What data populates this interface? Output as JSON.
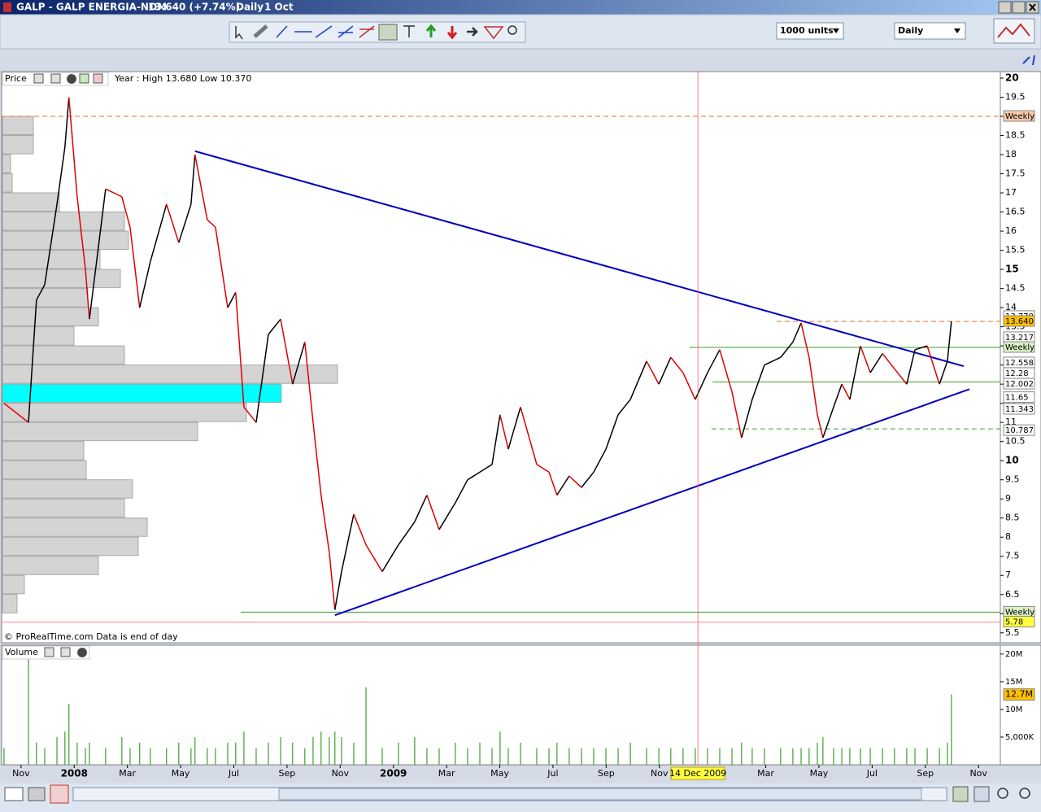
{
  "window": {
    "title": "GALP - GALP ENERGIA-NOM",
    "quote": "13.640 (+7.74%)",
    "period": "Daily",
    "date": "1 Oct"
  },
  "toolbar": {
    "units": "1000 units",
    "timeframe": "Daily"
  },
  "price_panel": {
    "label": "Price",
    "info": "Year : High 13.680 Low 10.370",
    "footer": "© ProRealTime.com Data is end of day"
  },
  "volume_panel": {
    "label": "Volume"
  },
  "chart_data": [
    {
      "type": "line",
      "xlim": [
        -0.73,
        36.82
      ],
      "ylim": [
        5.24,
        20.17
      ],
      "xticks": [
        {
          "value": 0,
          "label": "Nov"
        },
        {
          "value": 2,
          "label": "2008"
        },
        {
          "value": 4,
          "label": "Mar"
        },
        {
          "value": 6,
          "label": "May"
        },
        {
          "value": 8,
          "label": "Jul"
        },
        {
          "value": 10,
          "label": "Sep"
        },
        {
          "value": 12,
          "label": "Nov"
        },
        {
          "value": 14,
          "label": "2009"
        },
        {
          "value": 16,
          "label": "Mar"
        },
        {
          "value": 18,
          "label": "May"
        },
        {
          "value": 20,
          "label": "Jul"
        },
        {
          "value": 22,
          "label": "Sep"
        },
        {
          "value": 24,
          "label": "Nov"
        },
        {
          "value": 28,
          "label": "Mar"
        },
        {
          "value": 30,
          "label": "May"
        },
        {
          "value": 32,
          "label": "Jul"
        },
        {
          "value": 34,
          "label": "Sep"
        },
        {
          "value": 36,
          "label": "Nov"
        }
      ],
      "yticks": [
        5.5,
        6,
        6.5,
        7,
        7.5,
        8,
        8.5,
        9,
        9.5,
        10,
        10.5,
        11,
        11.5,
        12,
        12.5,
        13,
        13.5,
        14,
        14.5,
        15,
        15.5,
        16,
        16.5,
        17,
        17.5,
        18,
        18.5,
        19,
        19.5,
        20
      ],
      "colors": {
        "up": "#000000",
        "down": "#e00000"
      },
      "x": [
        -0.64,
        0.28,
        0.58,
        0.89,
        1.35,
        1.65,
        1.8,
        2.11,
        2.42,
        2.57,
        3.18,
        3.79,
        4.1,
        4.46,
        4.86,
        5.47,
        5.93,
        6.39,
        6.54,
        7.0,
        7.31,
        7.77,
        8.07,
        8.38,
        8.84,
        9.3,
        9.76,
        10.21,
        10.67,
        10.98,
        11.28,
        11.59,
        11.8,
        12.05,
        12.51,
        12.97,
        13.58,
        14.19,
        14.8,
        15.26,
        15.72,
        16.33,
        16.79,
        17.25,
        17.71,
        18.01,
        18.32,
        18.78,
        19.39,
        19.85,
        20.15,
        20.61,
        21.07,
        21.53,
        21.99,
        22.45,
        22.91,
        23.52,
        23.98,
        24.43,
        24.89,
        25.35,
        25.81,
        26.27,
        26.73,
        27.09,
        27.49,
        27.95,
        28.56,
        29.02,
        29.33,
        29.63,
        29.94,
        30.15,
        30.55,
        30.86,
        31.16,
        31.56,
        31.93,
        32.39,
        32.84,
        33.3,
        33.61,
        34.07,
        34.53,
        34.83,
        34.98
      ],
      "values": [
        11.5,
        11.0,
        14.2,
        14.6,
        16.7,
        18.2,
        19.5,
        16.9,
        15.0,
        13.7,
        17.1,
        16.9,
        16.1,
        14.0,
        15.2,
        16.7,
        15.7,
        16.7,
        18.0,
        16.3,
        16.1,
        14.0,
        14.4,
        11.4,
        11.0,
        13.3,
        13.7,
        12.0,
        13.1,
        11.0,
        9.1,
        7.6,
        6.1,
        7.1,
        8.6,
        7.8,
        7.1,
        7.8,
        8.4,
        9.1,
        8.2,
        8.9,
        9.5,
        9.7,
        9.9,
        11.2,
        10.3,
        11.4,
        9.9,
        9.7,
        9.1,
        9.6,
        9.3,
        9.7,
        10.3,
        11.2,
        11.6,
        12.6,
        12.0,
        12.7,
        12.3,
        11.6,
        12.3,
        12.9,
        11.8,
        10.6,
        11.6,
        12.5,
        12.7,
        13.1,
        13.6,
        12.7,
        11.2,
        10.6,
        11.4,
        12.0,
        11.6,
        13.0,
        12.3,
        12.8,
        12.4,
        12.0,
        12.9,
        13.0,
        12.0,
        12.6,
        13.64
      ],
      "trendlines": [
        {
          "points": [
            [
              6.54,
              18.09
            ],
            [
              35.44,
              12.47
            ]
          ],
          "color": "#0000c0"
        },
        {
          "points": [
            [
              11.8,
              5.96
            ],
            [
              35.66,
              11.87
            ]
          ],
          "color": "#0000c0"
        }
      ],
      "levels": [
        {
          "value": 19.0,
          "color": "#e07020",
          "dashed": true,
          "x_start": -0.73
        },
        {
          "value": 12.96,
          "color": "#3aa02a",
          "dashed": false,
          "x_start": 25.14
        },
        {
          "value": 12.06,
          "color": "#3aa02a",
          "dashed": false,
          "x_start": 26.0
        },
        {
          "value": 10.83,
          "color": "#3aa02a",
          "dashed": true,
          "x_start": 25.96
        },
        {
          "value": 13.64,
          "color": "#e07020",
          "dashed": true,
          "x_start": 28.41
        },
        {
          "value": 6.04,
          "color": "#3aa02a",
          "dashed": false,
          "x_start": 8.26
        },
        {
          "value": 5.78,
          "color": "#ff8080",
          "dashed": false,
          "x_start": -0.73
        }
      ],
      "price_labels": [
        {
          "value": 19.0,
          "label": "Weekly",
          "color": "#f8c8a8"
        },
        {
          "value": 13.77,
          "label": "13.770",
          "color": "#ffffff"
        },
        {
          "value": 13.64,
          "label": "13.640",
          "color": "#ffc000"
        },
        {
          "value": 13.217,
          "label": "13.217",
          "color": "#ffffff"
        },
        {
          "value": 12.96,
          "label": "Weekly",
          "color": "#d8f0c8"
        },
        {
          "value": 12.558,
          "label": "12.558",
          "color": "#ffffff"
        },
        {
          "value": 12.28,
          "label": "12.28",
          "color": "#ffffff"
        },
        {
          "value": 12.002,
          "label": "12.002",
          "color": "#ffffff"
        },
        {
          "value": 11.65,
          "label": "11.65",
          "color": "#ffffff"
        },
        {
          "value": 11.343,
          "label": "11.343",
          "color": "#ffffff"
        },
        {
          "value": 10.787,
          "label": "10.787",
          "color": "#ffffff"
        },
        {
          "value": 6.04,
          "label": "Weekly",
          "color": "#d8f0c8"
        },
        {
          "value": 5.78,
          "label": "5.78",
          "color": "#ffff40"
        }
      ],
      "cursor": {
        "x": 25.45,
        "label": "14 Dec 2009"
      },
      "volume_profile": {
        "bins": [
          6.0,
          6.5,
          7.0,
          7.5,
          8.0,
          8.5,
          9.0,
          9.5,
          10.0,
          10.5,
          11.0,
          11.5,
          12.0,
          12.5,
          13.0,
          13.5,
          14.0,
          14.5,
          15.0,
          15.5,
          16.0,
          16.5,
          17.0,
          17.5,
          18.0,
          18.5,
          19.0
        ],
        "values": [
          18,
          27,
          118,
          167,
          178,
          150,
          160,
          103,
          100,
          240,
          300,
          343,
          412,
          150,
          88,
          118,
          105,
          145,
          120,
          155,
          150,
          70,
          12,
          10,
          38,
          38
        ],
        "color": "#d4d4d4",
        "highlight_bin": 11.5,
        "highlight_color": "#00ffff"
      }
    },
    {
      "type": "bar",
      "color": "#3aa02a",
      "ylim": [
        0,
        21.6
      ],
      "yticks": [
        {
          "value": 5,
          "label": "5,000K"
        },
        {
          "value": 10,
          "label": "10M"
        },
        {
          "value": 15,
          "label": "15M"
        },
        {
          "value": 20,
          "label": "20M"
        }
      ],
      "values": [
        3,
        19.5,
        4,
        3,
        5,
        6,
        11,
        4,
        3,
        4,
        3,
        5,
        3,
        4,
        3,
        3,
        4,
        3,
        5,
        3,
        3,
        4,
        4,
        6,
        3,
        4,
        5,
        4,
        3,
        5,
        6,
        5,
        6,
        5,
        4,
        14,
        3,
        4,
        5,
        3,
        3,
        4,
        3,
        4,
        3,
        6,
        3,
        4,
        3,
        3,
        4,
        3,
        3,
        3,
        3,
        3,
        4,
        3,
        3,
        3,
        3,
        3,
        3,
        3,
        3,
        4,
        3,
        3,
        3,
        3,
        3,
        3,
        4,
        5,
        3,
        3,
        3,
        3,
        3,
        3,
        3,
        3,
        3,
        3,
        3,
        4,
        12.7
      ],
      "current": {
        "value": 12.7,
        "label": "12.7M"
      }
    }
  ]
}
